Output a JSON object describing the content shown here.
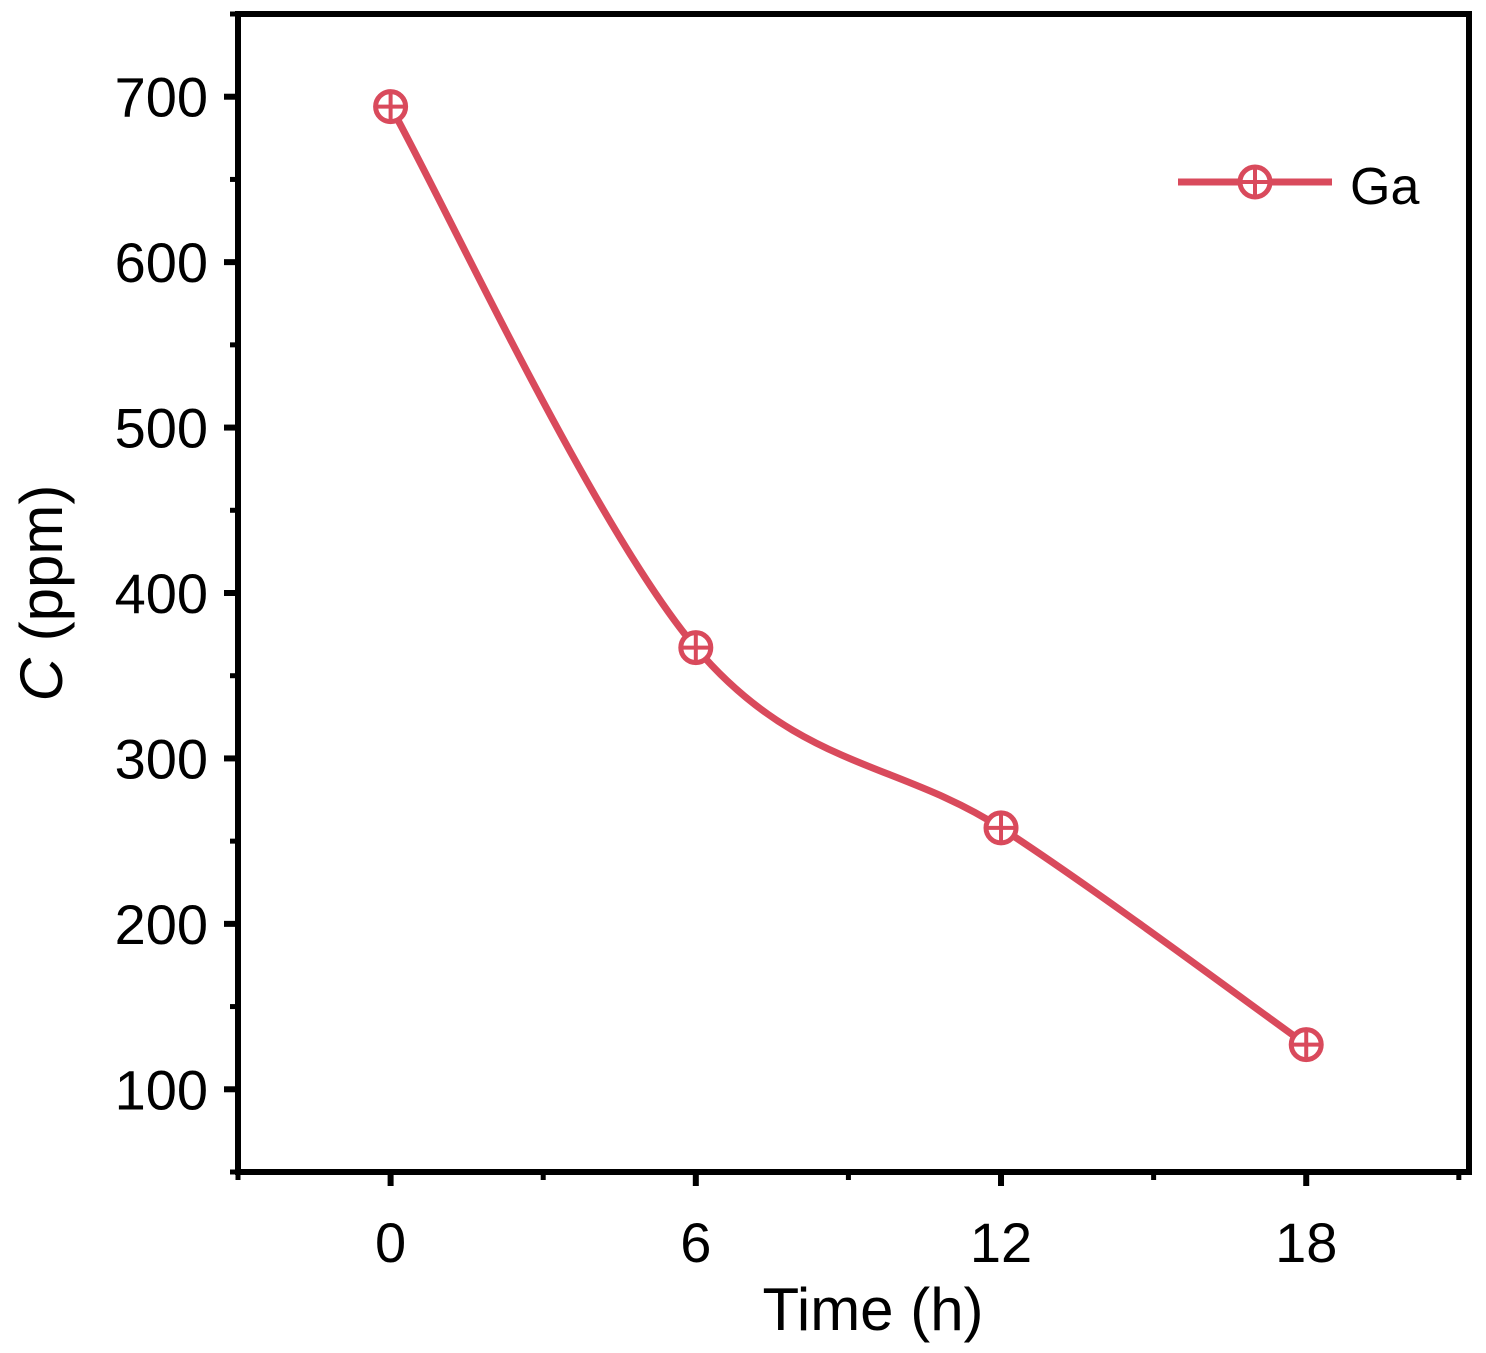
{
  "chart_data": {
    "type": "line",
    "title": "",
    "xlabel": "Time (h)",
    "ylabel_italic": "C",
    "ylabel_rest": " (ppm)",
    "x": [
      0,
      6,
      12,
      18
    ],
    "xlim": [
      -3,
      21.2
    ],
    "ylim": [
      50,
      750
    ],
    "xticks": [
      0,
      6,
      12,
      18
    ],
    "yticks": [
      100,
      200,
      300,
      400,
      500,
      600,
      700
    ],
    "series": [
      {
        "name": "Ga",
        "values": [
          694,
          367,
          258,
          127
        ],
        "color": "#d94a5c",
        "marker": "circle-plus"
      }
    ],
    "legend": "top-right",
    "grid": false
  }
}
